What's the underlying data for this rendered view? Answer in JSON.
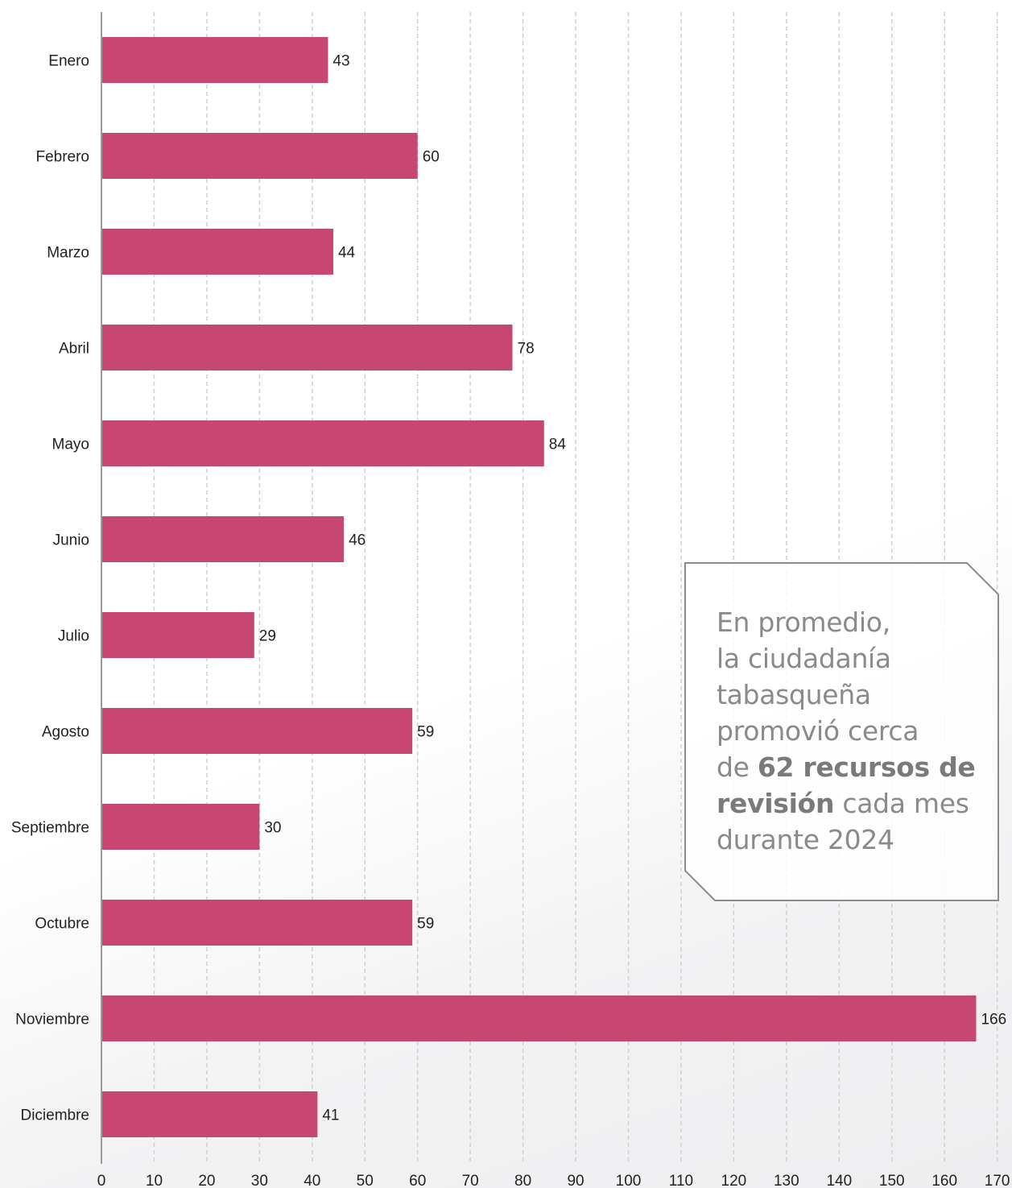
{
  "chart_data": {
    "type": "bar",
    "orientation": "horizontal",
    "categories": [
      "Enero",
      "Febrero",
      "Marzo",
      "Abril",
      "Mayo",
      "Junio",
      "Julio",
      "Agosto",
      "Septiembre",
      "Octubre",
      "Noviembre",
      "Diciembre"
    ],
    "values": [
      43,
      60,
      44,
      78,
      84,
      46,
      29,
      59,
      30,
      59,
      166,
      41
    ],
    "xticks": [
      0,
      10,
      20,
      30,
      40,
      50,
      60,
      70,
      80,
      90,
      100,
      110,
      120,
      130,
      140,
      150,
      160,
      170
    ],
    "xlim": [
      0,
      170
    ],
    "grid": "vertical dashed",
    "bar_color": "#c84672"
  },
  "callout": {
    "line1": "En promedio,",
    "line2": "la ciudadanía",
    "line3": "tabasqueña",
    "line4": "promovió cerca",
    "line5_pre": "de ",
    "line5_bold": "62 recursos de",
    "line6_bold": "revisión",
    "line6_post": " cada mes",
    "line7": "durante 2024"
  }
}
